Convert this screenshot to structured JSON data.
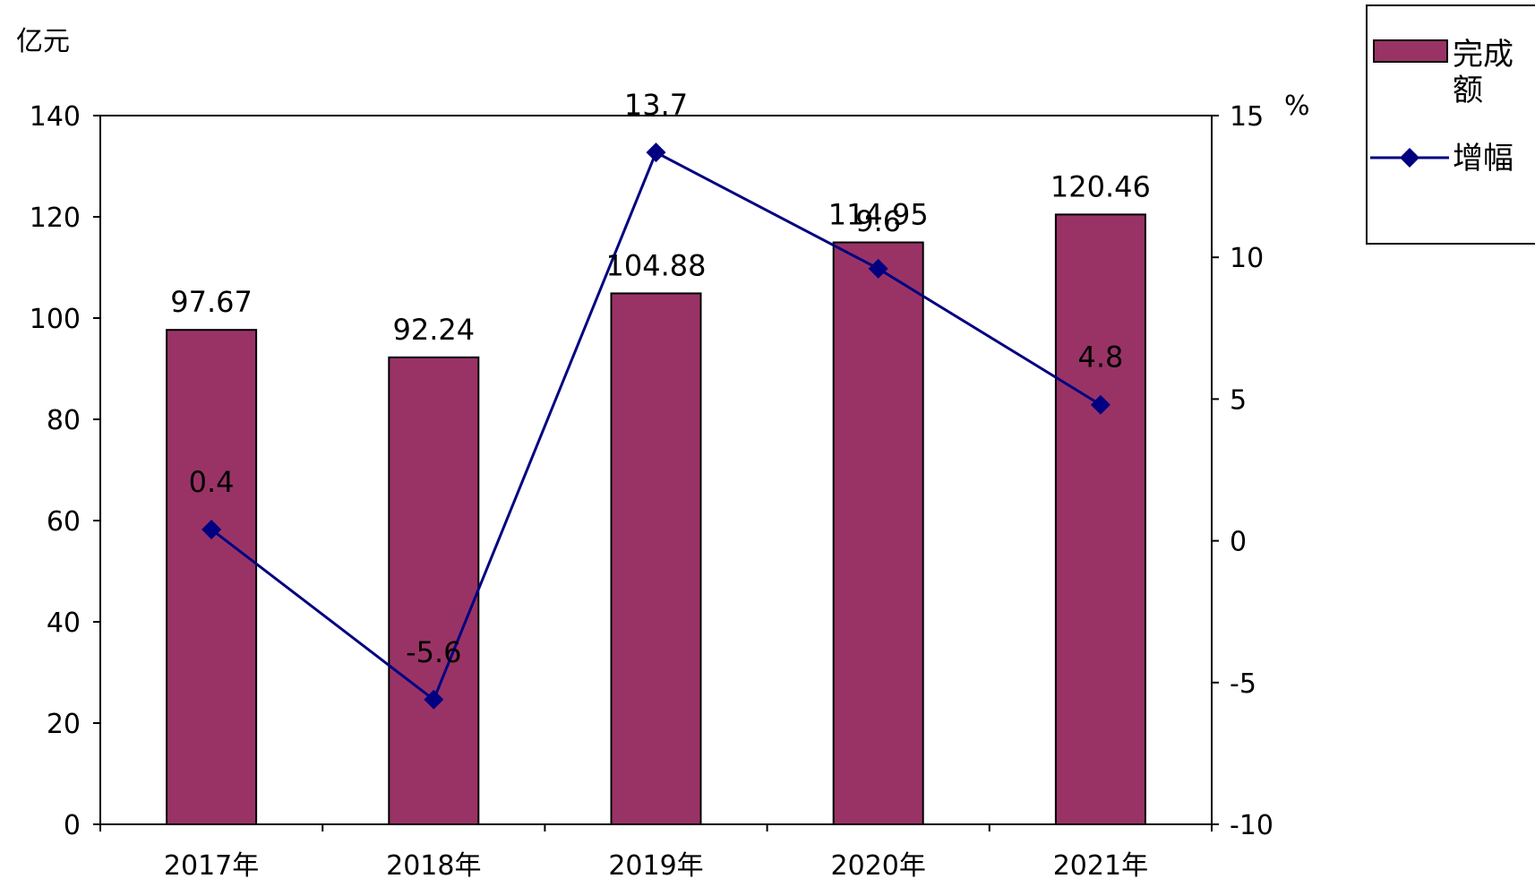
{
  "chart_data": {
    "type": "bar",
    "categories": [
      "2017年",
      "2018年",
      "2019年",
      "2020年",
      "2021年"
    ],
    "series": [
      {
        "name": "完成额",
        "type": "bar",
        "axis": "left",
        "values": [
          97.67,
          92.24,
          104.88,
          114.95,
          120.46
        ],
        "color": "#993366"
      },
      {
        "name": "增幅",
        "type": "line",
        "axis": "right",
        "values": [
          0.4,
          -5.6,
          13.7,
          9.6,
          4.8
        ],
        "color": "#000080"
      }
    ],
    "y_left": {
      "unit": "亿元",
      "range": [
        0,
        140
      ],
      "ticks": [
        0,
        20,
        40,
        60,
        80,
        100,
        120,
        140
      ]
    },
    "y_right": {
      "unit": "%",
      "range": [
        -10,
        15
      ],
      "ticks": [
        -10,
        -5,
        0,
        5,
        10,
        15
      ]
    },
    "bar_labels": [
      "97.67",
      "92.24",
      "104.88",
      "114.95",
      "120.46"
    ],
    "line_labels": [
      "0.4",
      "-5.6",
      "13.7",
      "9.6",
      "4.8"
    ],
    "legend": {
      "placement": "top-right",
      "entries": [
        "完成额",
        "增幅"
      ]
    },
    "grid": false
  }
}
